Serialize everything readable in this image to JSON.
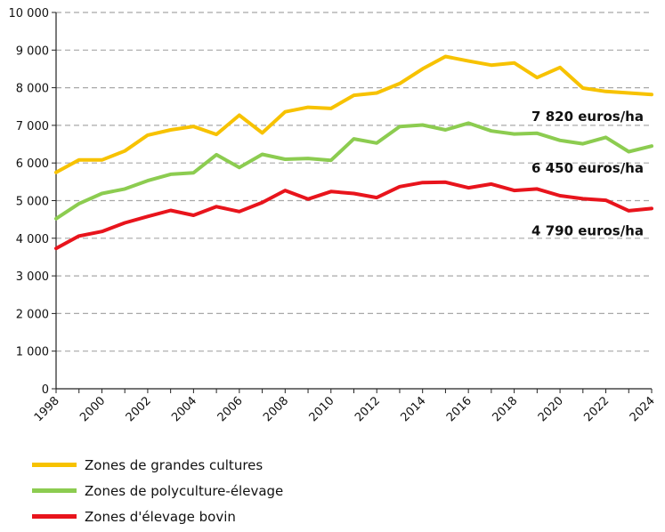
{
  "chart_data": {
    "type": "line",
    "title": "",
    "xlabel": "",
    "ylabel": "",
    "x": [
      1998,
      1999,
      2000,
      2001,
      2002,
      2003,
      2004,
      2005,
      2006,
      2007,
      2008,
      2009,
      2010,
      2011,
      2012,
      2013,
      2014,
      2015,
      2016,
      2017,
      2018,
      2019,
      2020,
      2021,
      2022,
      2023,
      2024
    ],
    "xticks": [
      "1998",
      "2000",
      "2002",
      "2004",
      "2006",
      "2008",
      "2010",
      "2012",
      "2014",
      "2016",
      "2018",
      "2020",
      "2022",
      "2024"
    ],
    "ylim": [
      0,
      10000
    ],
    "yticks": [
      "0",
      "1 000",
      "2 000",
      "3 000",
      "4 000",
      "5 000",
      "6 000",
      "7 000",
      "8 000",
      "9 000",
      "10 000"
    ],
    "grid": true,
    "legend_position": "bottom-left",
    "series": [
      {
        "name": "Zones de grandes cultures",
        "color": "#f7c200",
        "values": [
          5750,
          6080,
          6080,
          6320,
          6740,
          6880,
          6970,
          6760,
          7270,
          6800,
          7360,
          7480,
          7450,
          7800,
          7860,
          8110,
          8500,
          8830,
          8710,
          8600,
          8660,
          8270,
          8540,
          7990,
          7900,
          7860,
          7820
        ],
        "end_label": "7 820 euros/ha"
      },
      {
        "name": "Zones de polyculture-élevage",
        "color": "#8ccc50",
        "values": [
          4520,
          4920,
          5190,
          5310,
          5530,
          5700,
          5740,
          6220,
          5880,
          6230,
          6100,
          6120,
          6070,
          6640,
          6530,
          6970,
          7010,
          6880,
          7060,
          6850,
          6770,
          6790,
          6600,
          6510,
          6680,
          6300,
          6450
        ],
        "end_label": "6 450 euros/ha"
      },
      {
        "name": "Zones d'élevage bovin",
        "color": "#e8141c",
        "values": [
          3730,
          4060,
          4180,
          4410,
          4580,
          4740,
          4610,
          4840,
          4710,
          4950,
          5270,
          5040,
          5240,
          5190,
          5080,
          5370,
          5480,
          5490,
          5340,
          5440,
          5270,
          5310,
          5130,
          5050,
          5010,
          4730,
          4790
        ],
        "end_label": "4 790 euros/ha"
      }
    ]
  }
}
